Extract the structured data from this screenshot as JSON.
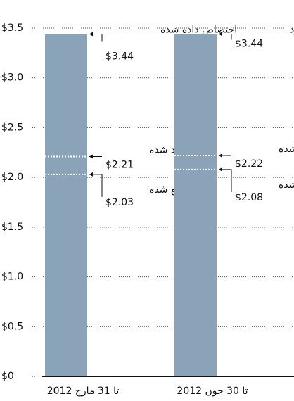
{
  "chart_data": {
    "type": "bar",
    "categories": [
      "تا 31 مارچ 2012",
      "تا 30 جون 2012"
    ],
    "bar_labels": [
      "اختصاص داده شده",
      "موجود"
    ],
    "values": [
      3.44,
      3.44
    ],
    "value_labels": [
      "$3.44",
      "$3.44"
    ],
    "color": "#8aa3b8",
    "markers": [
      {
        "name": "تعهد شده",
        "values": [
          2.21,
          2.22
        ],
        "value_labels": [
          "$2.21",
          "$2.22"
        ]
      },
      {
        "name": "توزیع شده",
        "values": [
          2.03,
          2.08
        ],
        "value_labels": [
          "$2.03",
          "$2.08"
        ]
      }
    ],
    "ylim": [
      0,
      3.5
    ],
    "yticks": [
      {
        "value": 0,
        "label": "$0"
      },
      {
        "value": 0.5,
        "label": "$0.5"
      },
      {
        "value": 1,
        "label": "$1.0"
      },
      {
        "value": 1.5,
        "label": "$1.5"
      },
      {
        "value": 2,
        "label": "$2.0"
      },
      {
        "value": 2.5,
        "label": "$2.5"
      },
      {
        "value": 3,
        "label": "$3.0"
      },
      {
        "value": 3.5,
        "label": "$3.5"
      }
    ],
    "grid": true
  }
}
